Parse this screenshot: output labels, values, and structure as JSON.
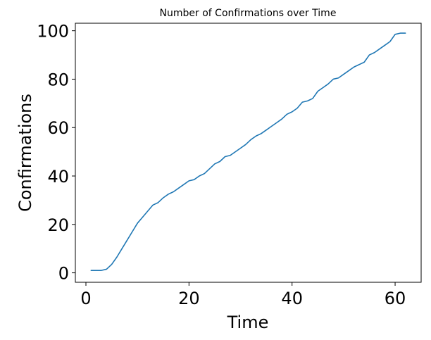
{
  "chart_data": {
    "type": "line",
    "title": "Number of Confirmations over Time",
    "xlabel": "Time",
    "ylabel": "Confirmations",
    "xlim": [
      -2.05,
      65.05
    ],
    "ylim": [
      -3.9,
      103.1
    ],
    "xticks": [
      0,
      20,
      40,
      60
    ],
    "yticks": [
      0,
      20,
      40,
      60,
      80,
      100
    ],
    "grid": false,
    "legend": "none",
    "line_color": "#1f77b4",
    "series": [
      {
        "x": [
          1,
          2,
          3,
          4,
          5,
          6,
          7,
          8,
          9,
          10,
          11,
          12,
          13,
          14,
          15,
          16,
          17,
          18,
          19,
          20,
          21,
          22,
          23,
          24,
          25,
          26,
          27,
          28,
          29,
          30,
          31,
          32,
          33,
          34,
          35,
          36,
          37,
          38,
          39,
          40,
          41,
          42,
          43,
          44,
          45,
          46,
          47,
          48,
          49,
          50,
          51,
          52,
          53,
          54,
          55,
          56,
          57,
          58,
          59,
          60,
          61,
          62
        ],
        "values": [
          1,
          1,
          1,
          1.5,
          3.5,
          6.5,
          10,
          13.5,
          17,
          20.5,
          23,
          25.5,
          28,
          29,
          31,
          32.5,
          33.5,
          35,
          36.5,
          38,
          38.5,
          40,
          41,
          43,
          45,
          46,
          48,
          48.5,
          50,
          51.5,
          53,
          55,
          56.5,
          57.5,
          59,
          60.5,
          62,
          63.5,
          65.5,
          66.5,
          68,
          70.5,
          71,
          72,
          75,
          76.5,
          78,
          80,
          80.5,
          82,
          83.5,
          85,
          86,
          87,
          90,
          91,
          92.5,
          94,
          95.5,
          98.5,
          99,
          99
        ]
      }
    ]
  }
}
